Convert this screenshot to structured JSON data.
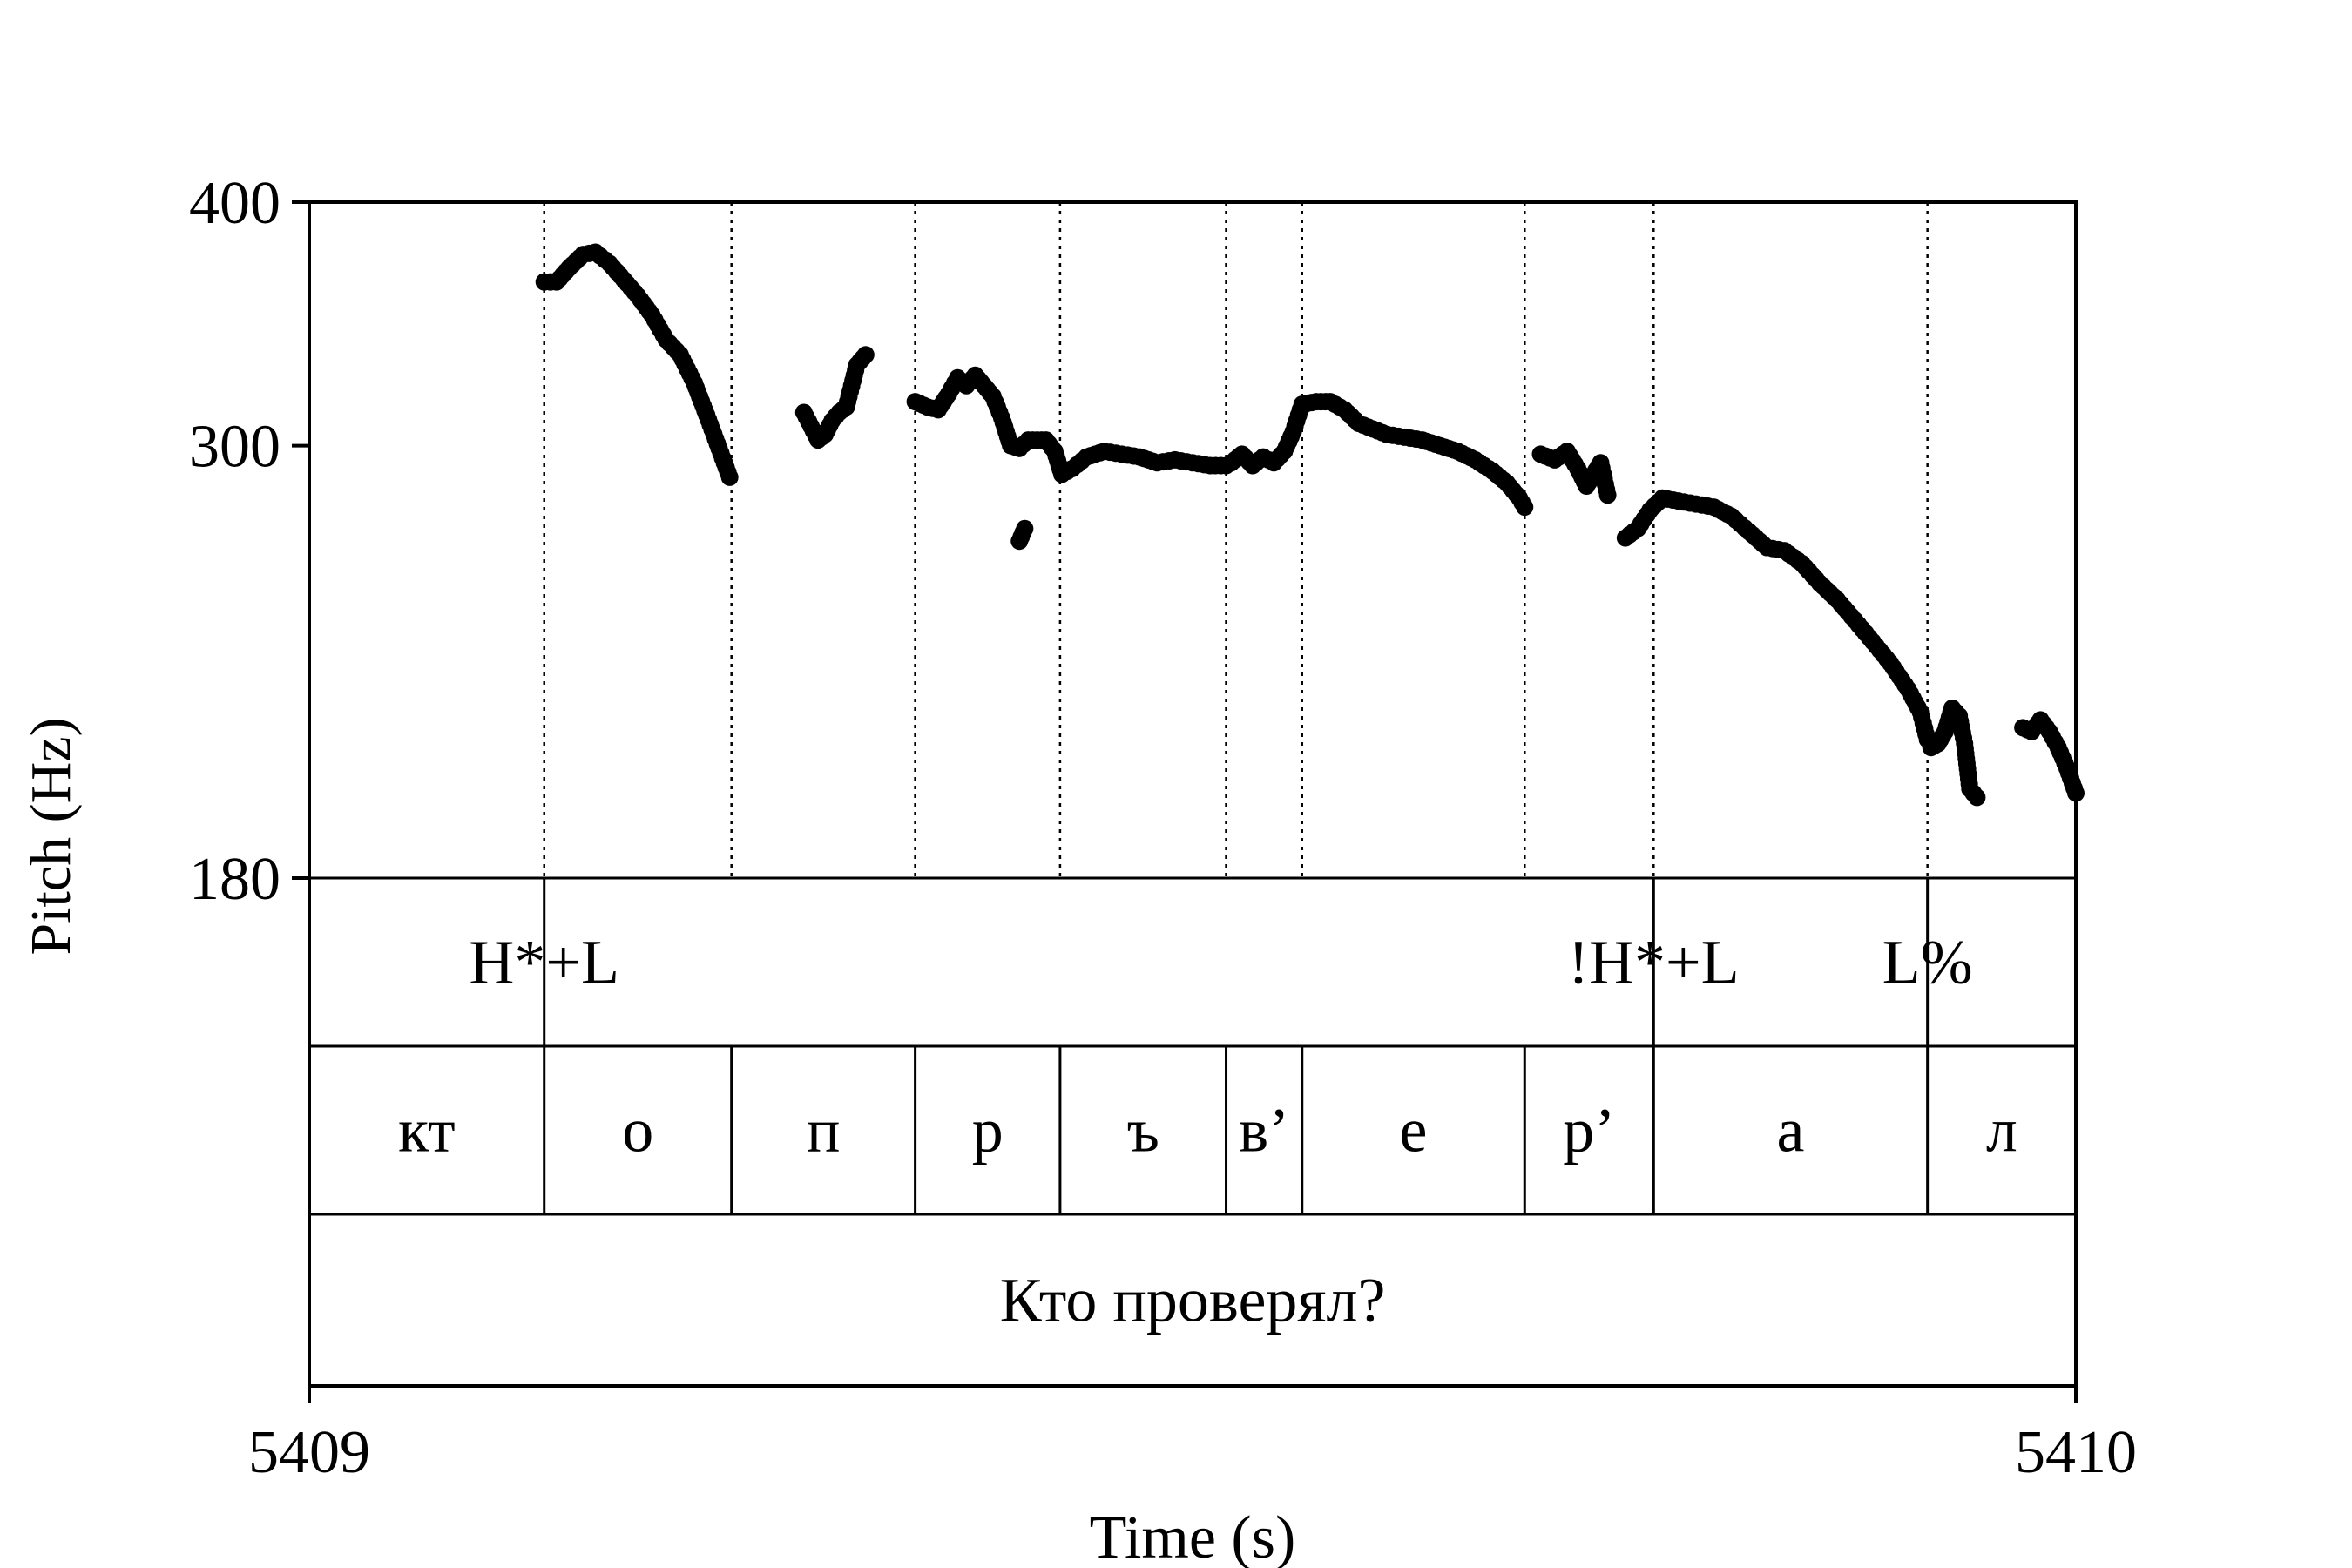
{
  "chart_data": {
    "type": "scatter",
    "title": "",
    "xlabel": "Time (s)",
    "ylabel": "Pitch (Hz)",
    "xlim": [
      5409,
      5410
    ],
    "ylim": [
      180,
      400
    ],
    "y_scale": "log",
    "grid": false,
    "x_ticks": [
      "5409",
      "5410"
    ],
    "y_ticks": [
      {
        "value": 400,
        "label": "400"
      },
      {
        "value": 300,
        "label": "300"
      },
      {
        "value": 180,
        "label": "180"
      }
    ],
    "boundaries": [
      5409.133,
      5409.239,
      5409.343,
      5409.425,
      5409.519,
      5409.562,
      5409.688,
      5409.761,
      5409.916
    ],
    "tiers": [
      {
        "name": "tones",
        "labels": [
          {
            "time": 5409.133,
            "text": "H*+L"
          },
          {
            "time": 5409.761,
            "text": "!H*+L"
          },
          {
            "time": 5409.916,
            "text": "L%"
          }
        ]
      },
      {
        "name": "segments",
        "intervals": [
          {
            "start": 5409.0,
            "end": 5409.133,
            "text": "кт"
          },
          {
            "start": 5409.133,
            "end": 5409.239,
            "text": "о"
          },
          {
            "start": 5409.239,
            "end": 5409.343,
            "text": "п"
          },
          {
            "start": 5409.343,
            "end": 5409.425,
            "text": "р"
          },
          {
            "start": 5409.425,
            "end": 5409.519,
            "text": "ъ"
          },
          {
            "start": 5409.519,
            "end": 5409.562,
            "text": "в’"
          },
          {
            "start": 5409.562,
            "end": 5409.688,
            "text": "е"
          },
          {
            "start": 5409.688,
            "end": 5409.761,
            "text": "р’"
          },
          {
            "start": 5409.761,
            "end": 5409.916,
            "text": "а"
          },
          {
            "start": 5409.916,
            "end": 5410.0,
            "text": "л"
          }
        ]
      },
      {
        "name": "sentence",
        "intervals": [
          {
            "start": 5409.0,
            "end": 5410.0,
            "text": "Кто проверял?"
          }
        ]
      }
    ],
    "pitch_segments": [
      {
        "x": [
          5409.133,
          5409.14,
          5409.147,
          5409.155,
          5409.162,
          5409.17,
          5409.178,
          5409.186,
          5409.194,
          5409.202,
          5409.21,
          5409.218,
          5409.225,
          5409.232,
          5409.238
        ],
        "y": [
          364,
          364,
          370,
          376,
          377,
          372,
          365,
          358,
          350,
          340,
          334,
          323,
          311,
          299,
          289
        ]
      },
      {
        "x": [
          5409.28,
          5409.284,
          5409.288,
          5409.292,
          5409.296,
          5409.3,
          5409.304,
          5409.31,
          5409.315
        ],
        "y": [
          312,
          307,
          302,
          304,
          309,
          312,
          314,
          330,
          334
        ]
      },
      {
        "x": [
          5409.343,
          5409.35,
          5409.356,
          5409.362,
          5409.367,
          5409.372,
          5409.377,
          5409.382,
          5409.387,
          5409.392,
          5409.397,
          5409.402,
          5409.407,
          5409.412,
          5409.417,
          5409.422,
          5409.426,
          5409.432,
          5409.44,
          5409.45,
          5409.46,
          5409.47,
          5409.48,
          5409.49,
          5409.5,
          5409.51,
          5409.519
        ],
        "y": [
          316,
          314,
          313,
          319,
          325,
          322,
          326,
          322,
          318,
          310,
          300,
          299,
          302,
          302,
          302,
          298,
          290,
          292,
          296,
          298,
          297,
          296,
          294,
          295,
          294,
          293,
          293
        ]
      },
      {
        "x": [
          5409.402,
          5409.405
        ],
        "y": [
          268,
          272
        ]
      },
      {
        "x": [
          5409.522,
          5409.528,
          5409.534,
          5409.54,
          5409.546,
          5409.552,
          5409.557,
          5409.562,
          5409.57,
          5409.578,
          5409.586,
          5409.594,
          5409.602,
          5409.61,
          5409.62,
          5409.63,
          5409.64,
          5409.65,
          5409.66,
          5409.67,
          5409.678,
          5409.685,
          5409.688
        ],
        "y": [
          294,
          297,
          293,
          296,
          294,
          298,
          305,
          315,
          316,
          316,
          313,
          308,
          306,
          304,
          303,
          302,
          300,
          298,
          295,
          291,
          287,
          282,
          279
        ]
      },
      {
        "x": [
          5409.697,
          5409.705,
          5409.712,
          5409.718,
          5409.723,
          5409.727,
          5409.731,
          5409.735
        ],
        "y": [
          297,
          295,
          298,
          292,
          286,
          290,
          294,
          283
        ]
      },
      {
        "x": [
          5409.745,
          5409.752,
          5409.759,
          5409.766,
          5409.775,
          5409.785,
          5409.795,
          5409.805,
          5409.815,
          5409.825,
          5409.835,
          5409.845,
          5409.855,
          5409.865,
          5409.875,
          5409.885,
          5409.895,
          5409.905,
          5409.912,
          5409.916
        ],
        "y": [
          269,
          272,
          278,
          282,
          281,
          280,
          279,
          276,
          271,
          266,
          265,
          261,
          255,
          250,
          244,
          238,
          232,
          225,
          219,
          212
        ]
      },
      {
        "x": [
          5409.918,
          5409.922,
          5409.926,
          5409.93,
          5409.934,
          5409.937,
          5409.94,
          5409.944
        ],
        "y": [
          210,
          211,
          214,
          220,
          218,
          211,
          200,
          198
        ]
      },
      {
        "x": [
          5409.97,
          5409.975,
          5409.98,
          5409.985,
          5409.99,
          5409.995,
          5410.0
        ],
        "y": [
          215,
          214,
          217,
          214,
          210,
          205,
          199
        ]
      }
    ]
  }
}
